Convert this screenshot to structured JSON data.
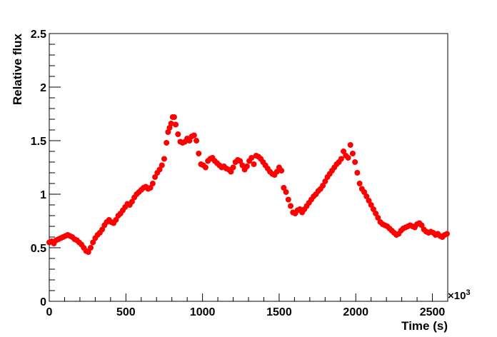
{
  "chart_data": {
    "type": "scatter",
    "title": "",
    "xlabel": "Time (s)",
    "ylabel": "Relative flux",
    "x_multiplier_label": "×10",
    "x_multiplier_exponent": "3",
    "xlim": [
      0,
      2600
    ],
    "ylim": [
      0,
      2.5
    ],
    "x_ticks": [
      "0",
      "500",
      "1000",
      "1500",
      "2000",
      "2500"
    ],
    "x_tick_values": [
      0,
      500,
      1000,
      1500,
      2000,
      2500
    ],
    "y_ticks": [
      "0",
      "0.5",
      "1",
      "1.5",
      "2",
      "2.5"
    ],
    "y_tick_values": [
      0,
      0.5,
      1,
      1.5,
      2,
      2.5
    ],
    "grid": false,
    "marker_color": "#ff0000",
    "series": [
      {
        "name": "",
        "points": [
          [
            0,
            0.55
          ],
          [
            15,
            0.56
          ],
          [
            30,
            0.54
          ],
          [
            45,
            0.57
          ],
          [
            60,
            0.58
          ],
          [
            75,
            0.59
          ],
          [
            90,
            0.6
          ],
          [
            105,
            0.61
          ],
          [
            120,
            0.62
          ],
          [
            135,
            0.61
          ],
          [
            150,
            0.6
          ],
          [
            165,
            0.58
          ],
          [
            180,
            0.57
          ],
          [
            195,
            0.55
          ],
          [
            210,
            0.53
          ],
          [
            225,
            0.5
          ],
          [
            240,
            0.47
          ],
          [
            255,
            0.46
          ],
          [
            270,
            0.5
          ],
          [
            285,
            0.55
          ],
          [
            300,
            0.59
          ],
          [
            315,
            0.62
          ],
          [
            330,
            0.64
          ],
          [
            345,
            0.67
          ],
          [
            360,
            0.71
          ],
          [
            375,
            0.74
          ],
          [
            390,
            0.76
          ],
          [
            405,
            0.74
          ],
          [
            420,
            0.73
          ],
          [
            435,
            0.76
          ],
          [
            450,
            0.8
          ],
          [
            465,
            0.82
          ],
          [
            480,
            0.85
          ],
          [
            495,
            0.88
          ],
          [
            510,
            0.91
          ],
          [
            525,
            0.9
          ],
          [
            540,
            0.93
          ],
          [
            555,
            0.97
          ],
          [
            570,
            1.0
          ],
          [
            585,
            1.02
          ],
          [
            600,
            1.04
          ],
          [
            615,
            1.06
          ],
          [
            630,
            1.07
          ],
          [
            645,
            1.05
          ],
          [
            660,
            1.06
          ],
          [
            675,
            1.1
          ],
          [
            690,
            1.16
          ],
          [
            705,
            1.2
          ],
          [
            720,
            1.23
          ],
          [
            735,
            1.27
          ],
          [
            750,
            1.33
          ],
          [
            765,
            1.48
          ],
          [
            775,
            1.58
          ],
          [
            785,
            1.62
          ],
          [
            795,
            1.66
          ],
          [
            805,
            1.72
          ],
          [
            815,
            1.72
          ],
          [
            825,
            1.65
          ],
          [
            840,
            1.56
          ],
          [
            855,
            1.49
          ],
          [
            870,
            1.48
          ],
          [
            885,
            1.49
          ],
          [
            900,
            1.52
          ],
          [
            915,
            1.5
          ],
          [
            930,
            1.54
          ],
          [
            945,
            1.55
          ],
          [
            960,
            1.5
          ],
          [
            975,
            1.38
          ],
          [
            990,
            1.28
          ],
          [
            1005,
            1.27
          ],
          [
            1020,
            1.25
          ],
          [
            1035,
            1.31
          ],
          [
            1050,
            1.33
          ],
          [
            1065,
            1.34
          ],
          [
            1080,
            1.31
          ],
          [
            1095,
            1.29
          ],
          [
            1110,
            1.27
          ],
          [
            1125,
            1.25
          ],
          [
            1140,
            1.26
          ],
          [
            1155,
            1.24
          ],
          [
            1170,
            1.23
          ],
          [
            1185,
            1.21
          ],
          [
            1200,
            1.25
          ],
          [
            1215,
            1.3
          ],
          [
            1230,
            1.32
          ],
          [
            1245,
            1.31
          ],
          [
            1260,
            1.27
          ],
          [
            1275,
            1.23
          ],
          [
            1290,
            1.26
          ],
          [
            1305,
            1.31
          ],
          [
            1320,
            1.34
          ],
          [
            1335,
            1.28
          ],
          [
            1350,
            1.36
          ],
          [
            1365,
            1.35
          ],
          [
            1380,
            1.33
          ],
          [
            1395,
            1.3
          ],
          [
            1410,
            1.27
          ],
          [
            1425,
            1.24
          ],
          [
            1440,
            1.21
          ],
          [
            1455,
            1.19
          ],
          [
            1470,
            1.18
          ],
          [
            1485,
            1.21
          ],
          [
            1500,
            1.25
          ],
          [
            1515,
            1.22
          ],
          [
            1530,
            1.06
          ],
          [
            1545,
            1.02
          ],
          [
            1560,
            0.95
          ],
          [
            1575,
            0.89
          ],
          [
            1590,
            0.83
          ],
          [
            1605,
            0.82
          ],
          [
            1620,
            0.85
          ],
          [
            1635,
            0.86
          ],
          [
            1650,
            0.83
          ],
          [
            1665,
            0.86
          ],
          [
            1680,
            0.89
          ],
          [
            1695,
            0.92
          ],
          [
            1710,
            0.95
          ],
          [
            1725,
            0.98
          ],
          [
            1740,
            1.0
          ],
          [
            1755,
            1.03
          ],
          [
            1770,
            1.05
          ],
          [
            1785,
            1.08
          ],
          [
            1800,
            1.12
          ],
          [
            1815,
            1.16
          ],
          [
            1830,
            1.19
          ],
          [
            1845,
            1.22
          ],
          [
            1860,
            1.25
          ],
          [
            1875,
            1.28
          ],
          [
            1890,
            1.3
          ],
          [
            1905,
            1.33
          ],
          [
            1920,
            1.4
          ],
          [
            1935,
            1.36
          ],
          [
            1950,
            1.34
          ],
          [
            1965,
            1.46
          ],
          [
            1980,
            1.38
          ],
          [
            1995,
            1.3
          ],
          [
            2010,
            1.2
          ],
          [
            2025,
            1.1
          ],
          [
            2040,
            1.05
          ],
          [
            2055,
            1.02
          ],
          [
            2070,
            0.98
          ],
          [
            2085,
            0.94
          ],
          [
            2100,
            0.9
          ],
          [
            2115,
            0.86
          ],
          [
            2130,
            0.82
          ],
          [
            2145,
            0.78
          ],
          [
            2160,
            0.74
          ],
          [
            2175,
            0.72
          ],
          [
            2190,
            0.71
          ],
          [
            2205,
            0.7
          ],
          [
            2220,
            0.68
          ],
          [
            2235,
            0.66
          ],
          [
            2250,
            0.64
          ],
          [
            2265,
            0.62
          ],
          [
            2280,
            0.63
          ],
          [
            2295,
            0.66
          ],
          [
            2310,
            0.68
          ],
          [
            2325,
            0.69
          ],
          [
            2340,
            0.7
          ],
          [
            2355,
            0.71
          ],
          [
            2370,
            0.7
          ],
          [
            2385,
            0.69
          ],
          [
            2400,
            0.72
          ],
          [
            2415,
            0.73
          ],
          [
            2430,
            0.71
          ],
          [
            2445,
            0.67
          ],
          [
            2460,
            0.65
          ],
          [
            2475,
            0.64
          ],
          [
            2490,
            0.65
          ],
          [
            2505,
            0.64
          ],
          [
            2520,
            0.62
          ],
          [
            2535,
            0.63
          ],
          [
            2550,
            0.61
          ],
          [
            2565,
            0.6
          ],
          [
            2580,
            0.62
          ],
          [
            2595,
            0.63
          ]
        ]
      }
    ]
  }
}
